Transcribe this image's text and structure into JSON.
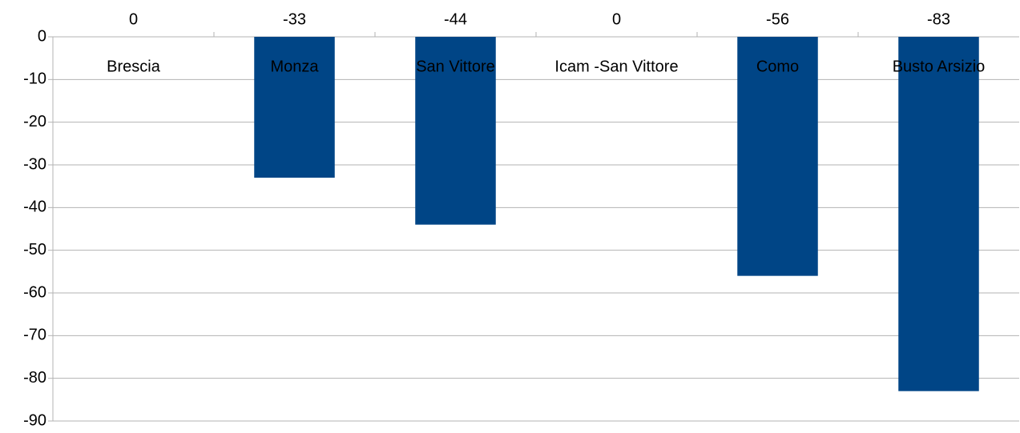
{
  "chart_data": {
    "type": "bar",
    "categories": [
      "Brescia",
      "Monza",
      "San Vittore",
      "Icam -San Vittore",
      "Como",
      "Busto Arsizio"
    ],
    "values": [
      0,
      -33,
      -44,
      0,
      -56,
      -83
    ],
    "color": "#004586",
    "ylim": [
      -90,
      0
    ],
    "yticks": [
      0,
      -10,
      -20,
      -30,
      -40,
      -50,
      -60,
      -70,
      -80,
      -90
    ],
    "grid": true
  }
}
